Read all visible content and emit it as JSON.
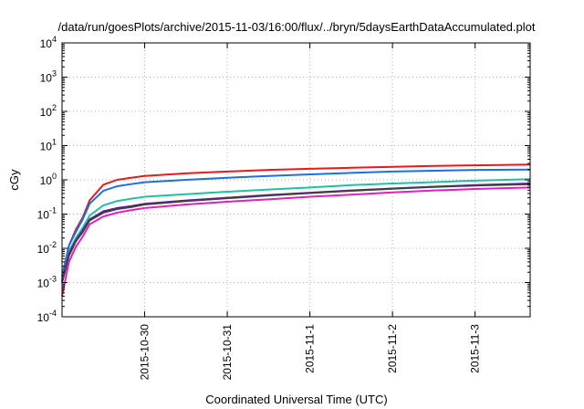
{
  "chart_data": {
    "type": "line",
    "title": "/data/run/goesPlots/archive/2015-11-03/16:00/flux/../bryn/5daysEarthDataAccumulated.plot",
    "xlabel": "Coordinated Universal Time (UTC)",
    "ylabel": "cGy",
    "yscale": "log",
    "ylim": [
      0.0001,
      10000
    ],
    "xlim": [
      "2015-10-29 00:00",
      "2015-11-03 16:00"
    ],
    "grid": true,
    "legend": "none",
    "x_ticks": [
      "2015-10-30",
      "2015-10-31",
      "2015-11-1",
      "2015-11-2",
      "2015-11-3"
    ],
    "y_ticks": [
      {
        "base": "10",
        "exp": "4"
      },
      {
        "base": "10",
        "exp": "3"
      },
      {
        "base": "10",
        "exp": "2"
      },
      {
        "base": "10",
        "exp": "1"
      },
      {
        "base": "10",
        "exp": "0"
      },
      {
        "base": "10",
        "exp": "-1"
      },
      {
        "base": "10",
        "exp": "-2"
      },
      {
        "base": "10",
        "exp": "-3"
      },
      {
        "base": "10",
        "exp": "-4"
      }
    ],
    "x": [
      "2015-10-29 00:00",
      "2015-10-29 02:00",
      "2015-10-29 04:00",
      "2015-10-29 06:00",
      "2015-10-29 08:00",
      "2015-10-29 12:00",
      "2015-10-29 16:00",
      "2015-10-29 20:00",
      "2015-10-30 00:00",
      "2015-10-30 12:00",
      "2015-10-31 00:00",
      "2015-10-31 12:00",
      "2015-11-01 00:00",
      "2015-11-01 12:00",
      "2015-11-02 00:00",
      "2015-11-02 12:00",
      "2015-11-03 00:00",
      "2015-11-03 16:00"
    ],
    "series": [
      {
        "color": "#e41a1c",
        "values": [
          0.0015,
          0.012,
          0.035,
          0.08,
          0.25,
          0.72,
          1.0,
          1.15,
          1.3,
          1.55,
          1.75,
          1.95,
          2.1,
          2.25,
          2.4,
          2.55,
          2.65,
          2.8
        ]
      },
      {
        "color": "#1a6fe3",
        "values": [
          0.0015,
          0.012,
          0.03,
          0.07,
          0.2,
          0.48,
          0.65,
          0.75,
          0.85,
          1.0,
          1.15,
          1.3,
          1.45,
          1.6,
          1.75,
          1.85,
          1.95,
          2.0
        ]
      },
      {
        "color": "#20c0a0",
        "values": [
          0.0012,
          0.008,
          0.02,
          0.04,
          0.09,
          0.18,
          0.24,
          0.28,
          0.32,
          0.38,
          0.45,
          0.52,
          0.6,
          0.7,
          0.78,
          0.86,
          0.95,
          1.05
        ]
      },
      {
        "color": "#6a0dad",
        "values": [
          0.0011,
          0.007,
          0.017,
          0.033,
          0.07,
          0.12,
          0.15,
          0.17,
          0.2,
          0.25,
          0.3,
          0.36,
          0.42,
          0.49,
          0.56,
          0.63,
          0.7,
          0.78
        ]
      },
      {
        "color": "#404040",
        "values": [
          0.001,
          0.006,
          0.016,
          0.03,
          0.065,
          0.11,
          0.14,
          0.16,
          0.19,
          0.24,
          0.29,
          0.35,
          0.41,
          0.48,
          0.55,
          0.62,
          0.68,
          0.75
        ]
      },
      {
        "color": "#e020c0",
        "values": [
          0.0004,
          0.004,
          0.011,
          0.022,
          0.05,
          0.085,
          0.11,
          0.13,
          0.15,
          0.19,
          0.23,
          0.27,
          0.32,
          0.37,
          0.43,
          0.49,
          0.54,
          0.6
        ]
      }
    ]
  }
}
